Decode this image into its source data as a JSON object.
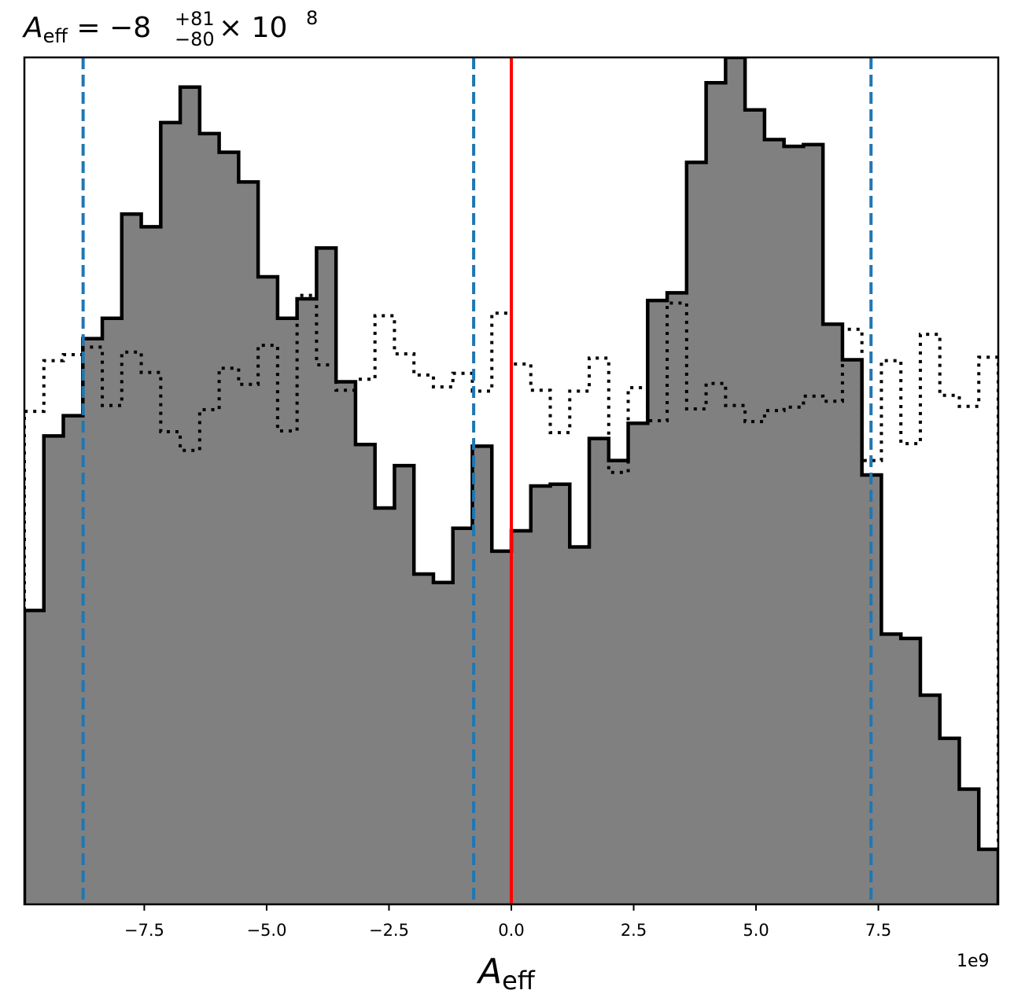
{
  "chart_data": {
    "type": "histogram",
    "title": {
      "symbol": "A",
      "subscript": "eff",
      "equals": "=",
      "value": "−8",
      "upper": "+81",
      "lower": "−80",
      "times": "×",
      "base": "10",
      "exponent": "8"
    },
    "xlabel": {
      "symbol": "A",
      "subscript": "eff"
    },
    "x_offset_label": "1e9",
    "xlim": [
      -9.95,
      9.95
    ],
    "ylim": [
      0,
      1.0
    ],
    "xticks": [
      -7.5,
      -5.0,
      -2.5,
      0.0,
      2.5,
      5.0,
      7.5
    ],
    "xtick_labels": [
      "−7.5",
      "−5.0",
      "−2.5",
      "0.0",
      "2.5",
      "5.0",
      "7.5"
    ],
    "bin_edges": [
      -9.95,
      -9.552,
      -9.154,
      -8.756,
      -8.358,
      -7.96,
      -7.562,
      -7.164,
      -6.766,
      -6.368,
      -5.97,
      -5.572,
      -5.174,
      -4.776,
      -4.378,
      -3.98,
      -3.582,
      -3.184,
      -2.786,
      -2.388,
      -1.99,
      -1.592,
      -1.194,
      -0.796,
      -0.398,
      0.0,
      0.398,
      0.796,
      1.194,
      1.592,
      1.99,
      2.388,
      2.786,
      3.184,
      3.582,
      3.98,
      4.378,
      4.776,
      5.174,
      5.572,
      5.97,
      6.368,
      6.766,
      7.164,
      7.562,
      7.96,
      8.358,
      8.756,
      9.154,
      9.552,
      9.95
    ],
    "series": [
      {
        "style": "filled",
        "color": "#808080",
        "edge_color": "#000000",
        "values": [
          0.347,
          0.553,
          0.577,
          0.668,
          0.692,
          0.815,
          0.8,
          0.923,
          0.965,
          0.91,
          0.888,
          0.853,
          0.741,
          0.692,
          0.715,
          0.775,
          0.617,
          0.543,
          0.468,
          0.518,
          0.39,
          0.38,
          0.444,
          0.541,
          0.417,
          0.441,
          0.494,
          0.496,
          0.422,
          0.55,
          0.524,
          0.568,
          0.713,
          0.722,
          0.876,
          0.97,
          1.0,
          0.938,
          0.903,
          0.895,
          0.897,
          0.685,
          0.643,
          0.507,
          0.319,
          0.314,
          0.247,
          0.196,
          0.136,
          0.065
        ]
      },
      {
        "style": "dotted",
        "color": "#000000",
        "values": [
          0.582,
          0.642,
          0.649,
          0.658,
          0.589,
          0.652,
          0.628,
          0.558,
          0.536,
          0.584,
          0.633,
          0.614,
          0.66,
          0.559,
          0.719,
          0.637,
          0.607,
          0.62,
          0.695,
          0.65,
          0.625,
          0.611,
          0.627,
          0.606,
          0.698,
          0.638,
          0.607,
          0.557,
          0.606,
          0.645,
          0.51,
          0.61,
          0.571,
          0.71,
          0.585,
          0.615,
          0.589,
          0.57,
          0.583,
          0.587,
          0.6,
          0.594,
          0.679,
          0.524,
          0.642,
          0.544,
          0.673,
          0.601,
          0.588,
          0.646
        ]
      }
    ],
    "vlines": [
      {
        "x": -8.75,
        "style": "dashed",
        "color": "#1f77b4"
      },
      {
        "x": -0.77,
        "style": "dashed",
        "color": "#1f77b4"
      },
      {
        "x": 7.35,
        "style": "dashed",
        "color": "#1f77b4"
      },
      {
        "x": 0.0,
        "style": "solid",
        "color": "#ff0000"
      }
    ],
    "grid": false,
    "legend": "none"
  }
}
